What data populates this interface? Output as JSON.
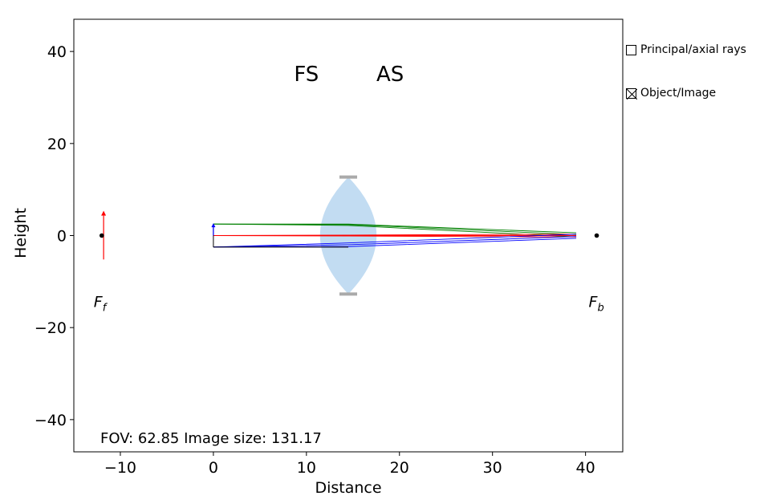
{
  "chart_data": {
    "type": "line",
    "xlabel": "Distance",
    "ylabel": "Height",
    "xlim": [
      -15,
      44
    ],
    "ylim": [
      -47,
      47
    ],
    "xticks": [
      -10,
      0,
      10,
      20,
      30,
      40
    ],
    "yticks": [
      -40,
      -20,
      0,
      20,
      40
    ],
    "grid": false,
    "stop_labels": [
      {
        "text": "FS",
        "x": 10,
        "y": 35
      },
      {
        "text": "AS",
        "x": 19,
        "y": 35
      }
    ],
    "focal_points": [
      {
        "label": "F_f",
        "x": -12,
        "y": 0
      },
      {
        "label": "F_b",
        "x": 41.2,
        "y": 0
      }
    ],
    "info_text": "FOV: 62.85 Image size: 131.17",
    "lens": {
      "x_left": 10,
      "x_right": 19,
      "x_center": 14.5,
      "aperture_half_height": 12.7,
      "color": "#c2dcf2"
    },
    "object": {
      "x": 0,
      "y_bottom": 0,
      "y_top": 2.5,
      "color": "#0000ff"
    },
    "image": {
      "x": -11.8,
      "y_bottom": -5.2,
      "y_top": 5.2,
      "color": "#ff0000"
    },
    "ray_endpoint_x": 39,
    "ray_bundles": [
      {
        "name": "upper",
        "color": "#008000",
        "start": [
          0,
          2.5
        ],
        "lens_y": [
          2.5,
          2.4,
          2.2
        ],
        "end_y": [
          0.6,
          0.2,
          -0.3
        ]
      },
      {
        "name": "axial",
        "color": "#ff0000",
        "start": [
          0,
          0
        ],
        "lens_y": [
          0.1,
          0.0,
          -0.1
        ],
        "end_y": [
          0.3,
          0.0,
          -0.3
        ]
      },
      {
        "name": "lower",
        "color": "#0000ff",
        "start": [
          0,
          -2.5
        ],
        "lens_y": [
          -1.6,
          -2.0,
          -2.4
        ],
        "end_y": [
          0.3,
          -0.2,
          -0.6
        ]
      }
    ],
    "colors": {
      "upper": "#008000",
      "axial": "#ff0000",
      "lower": "#0000ff",
      "aperture": "#aaaaaa"
    }
  },
  "controls": {
    "principal_axial_label": "Principal/axial rays",
    "principal_axial_checked": false,
    "object_image_label": "Object/Image",
    "object_image_checked": true
  }
}
